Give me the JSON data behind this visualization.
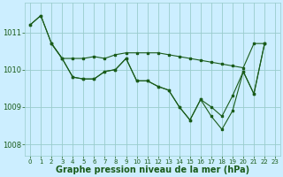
{
  "background_color": "#cceeff",
  "grid_color": "#99cccc",
  "line_color": "#1a5c1a",
  "xlabel": "Graphe pression niveau de la mer (hPa)",
  "xlim": [
    -0.5,
    23.5
  ],
  "ylim": [
    1007.7,
    1011.8
  ],
  "yticks": [
    1008,
    1009,
    1010,
    1011
  ],
  "xticks": [
    0,
    1,
    2,
    3,
    4,
    5,
    6,
    7,
    8,
    9,
    10,
    11,
    12,
    13,
    14,
    15,
    16,
    17,
    18,
    19,
    20,
    21,
    22,
    23
  ],
  "line1_x": [
    0,
    1,
    2,
    3,
    4,
    5,
    6,
    7,
    8,
    9,
    10,
    11,
    12,
    13,
    14,
    15,
    16,
    17,
    18,
    19,
    20,
    21,
    22
  ],
  "line1_y": [
    1011.2,
    1011.45,
    1010.7,
    1010.3,
    1010.3,
    1010.3,
    1010.35,
    1010.3,
    1010.4,
    1010.45,
    1010.45,
    1010.45,
    1010.45,
    1010.4,
    1010.35,
    1010.3,
    1010.25,
    1010.2,
    1010.15,
    1010.1,
    1010.05,
    1010.7,
    1010.7
  ],
  "line2_x": [
    2,
    3,
    4,
    5,
    6,
    7,
    8,
    9,
    10,
    11,
    12,
    13,
    14,
    15,
    16,
    17,
    18,
    19,
    20,
    21,
    22
  ],
  "line2_y": [
    1010.7,
    1010.3,
    1009.8,
    1009.75,
    1009.75,
    1009.95,
    1010.0,
    1010.3,
    1009.7,
    1009.7,
    1009.55,
    1009.45,
    1009.0,
    1008.65,
    1009.2,
    1009.0,
    1008.75,
    1009.3,
    1009.95,
    1009.35,
    1010.7
  ],
  "line3_x": [
    0,
    1,
    2,
    3,
    4,
    5,
    6,
    7,
    8,
    9,
    10,
    11,
    12,
    13,
    14,
    15,
    16,
    17,
    18,
    19,
    20,
    21,
    22
  ],
  "line3_y": [
    1011.2,
    1011.45,
    1010.7,
    1010.3,
    1009.8,
    1009.75,
    1009.75,
    1009.95,
    1010.0,
    1010.3,
    1009.7,
    1009.7,
    1009.55,
    1009.45,
    1009.0,
    1008.65,
    1009.2,
    1008.75,
    1008.4,
    1008.9,
    1009.95,
    1009.35,
    1010.7
  ]
}
